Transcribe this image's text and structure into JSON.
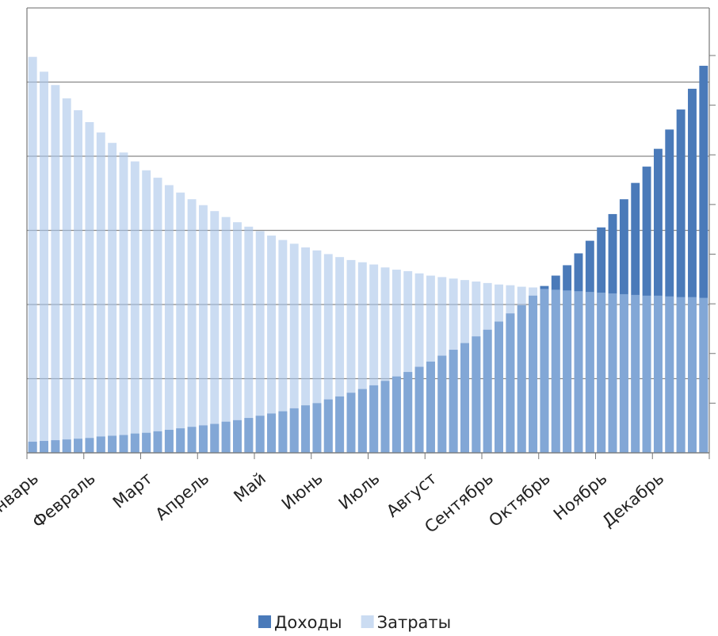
{
  "chart_data": {
    "type": "bar",
    "categories": [
      "Январь",
      null,
      null,
      null,
      null,
      "Февраль",
      null,
      null,
      null,
      null,
      "Март",
      null,
      null,
      null,
      null,
      "Апрель",
      null,
      null,
      null,
      null,
      "Май",
      null,
      null,
      null,
      null,
      "Июнь",
      null,
      null,
      null,
      null,
      "Июль",
      null,
      null,
      null,
      null,
      "Август",
      null,
      null,
      null,
      null,
      "Сентябрь",
      null,
      null,
      null,
      null,
      "Октябрь",
      null,
      null,
      null,
      null,
      "Ноябрь",
      null,
      null,
      null,
      null,
      "Декабрь",
      null,
      null,
      null,
      null
    ],
    "series": [
      {
        "name": "Доходы",
        "color": "#4a7ab9",
        "values": [
          0.15,
          0.16,
          0.17,
          0.18,
          0.19,
          0.2,
          0.22,
          0.23,
          0.24,
          0.26,
          0.27,
          0.29,
          0.31,
          0.33,
          0.35,
          0.37,
          0.39,
          0.42,
          0.44,
          0.47,
          0.5,
          0.53,
          0.56,
          0.6,
          0.64,
          0.67,
          0.72,
          0.76,
          0.81,
          0.86,
          0.91,
          0.97,
          1.03,
          1.09,
          1.16,
          1.23,
          1.31,
          1.39,
          1.48,
          1.57,
          1.66,
          1.77,
          1.88,
          1.99,
          2.12,
          2.25,
          2.39,
          2.53,
          2.69,
          2.86,
          3.04,
          3.22,
          3.42,
          3.64,
          3.86,
          4.1,
          4.36,
          4.63,
          4.91,
          5.22
        ]
      },
      {
        "name": "Затраты",
        "color": "#a9c4ea",
        "values": [
          5.34,
          5.14,
          4.96,
          4.78,
          4.62,
          4.46,
          4.32,
          4.18,
          4.05,
          3.93,
          3.81,
          3.71,
          3.61,
          3.51,
          3.42,
          3.34,
          3.26,
          3.18,
          3.11,
          3.05,
          2.99,
          2.93,
          2.87,
          2.82,
          2.77,
          2.73,
          2.68,
          2.64,
          2.6,
          2.57,
          2.54,
          2.5,
          2.47,
          2.45,
          2.42,
          2.39,
          2.37,
          2.35,
          2.33,
          2.31,
          2.29,
          2.27,
          2.26,
          2.24,
          2.23,
          2.21,
          2.2,
          2.19,
          2.18,
          2.17,
          2.16,
          2.15,
          2.14,
          2.13,
          2.12,
          2.12,
          2.11,
          2.1,
          2.1,
          2.09
        ]
      }
    ],
    "ylim": [
      0,
      6
    ],
    "yticks": [
      0,
      1,
      2,
      3,
      4,
      5,
      6
    ],
    "grid": true
  }
}
